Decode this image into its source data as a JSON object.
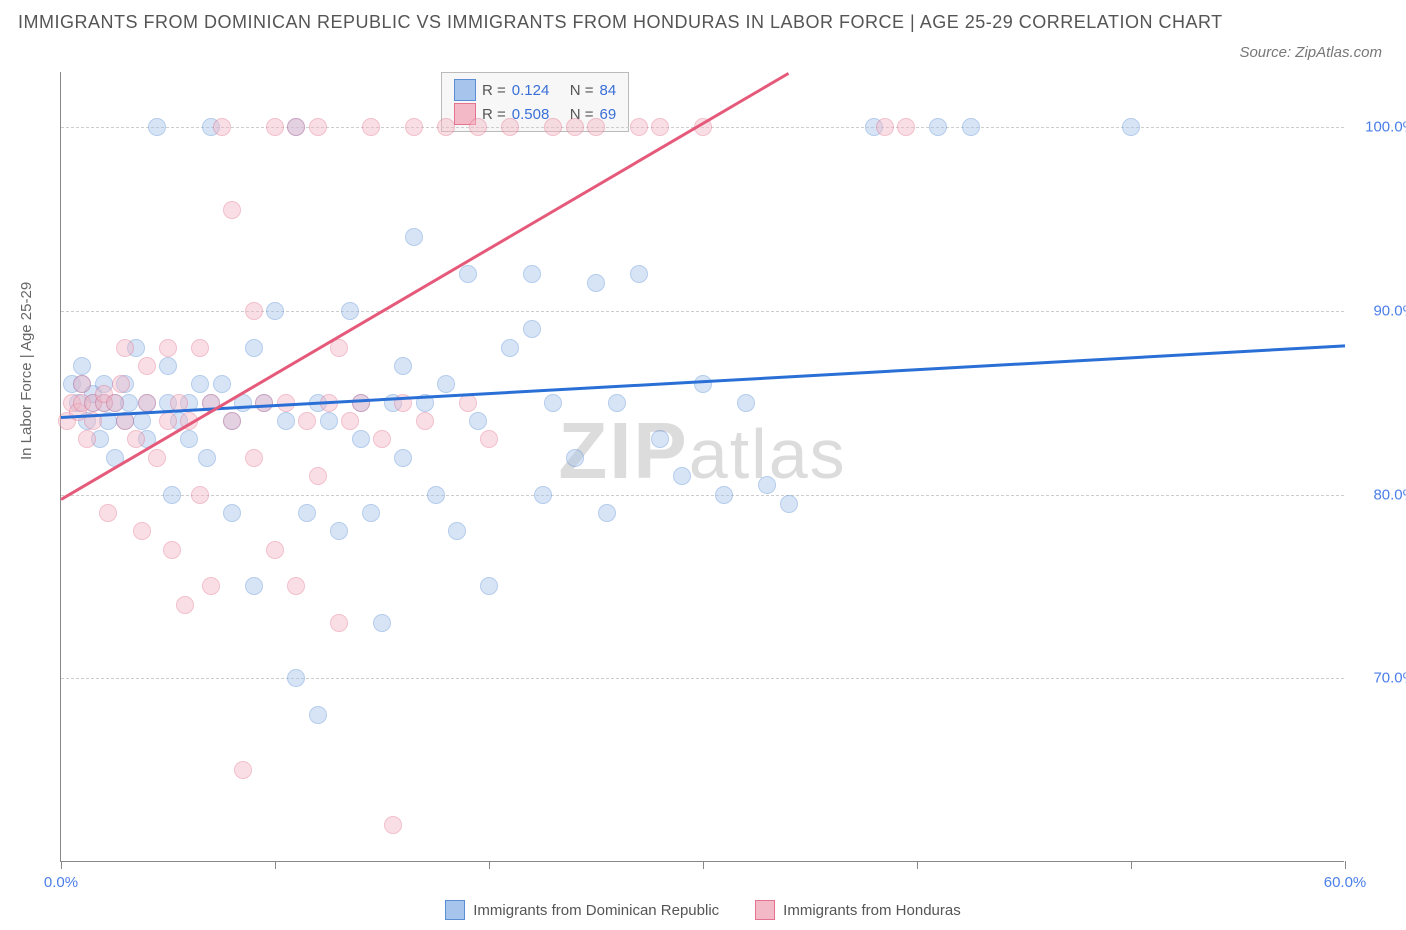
{
  "title": "IMMIGRANTS FROM DOMINICAN REPUBLIC VS IMMIGRANTS FROM HONDURAS IN LABOR FORCE | AGE 25-29 CORRELATION CHART",
  "source": "Source: ZipAtlas.com",
  "y_axis_label": "In Labor Force | Age 25-29",
  "watermark_a": "ZIP",
  "watermark_b": "atlas",
  "chart": {
    "type": "scatter",
    "background_color": "#ffffff",
    "grid_color": "#cccccc",
    "axis_color": "#888888",
    "tick_label_color": "#4a7ee8",
    "xlim": [
      0,
      60
    ],
    "ylim": [
      60,
      103
    ],
    "xticks": [
      0,
      10,
      20,
      30,
      40,
      50,
      60
    ],
    "xtick_labels": [
      "0.0%",
      "",
      "",
      "",
      "",
      "",
      "60.0%"
    ],
    "yticks": [
      70,
      80,
      90,
      100
    ],
    "ytick_labels": [
      "70.0%",
      "80.0%",
      "90.0%",
      "100.0%"
    ],
    "marker_radius": 9,
    "marker_opacity": 0.45,
    "series": [
      {
        "name": "Immigrants from Dominican Republic",
        "color_fill": "#a7c5ec",
        "color_stroke": "#5a8fd6",
        "R": 0.124,
        "N": 84,
        "trend": {
          "color": "#2a6fd6",
          "x1": 0,
          "y1": 84.3,
          "x2": 60,
          "y2": 88.2
        },
        "points": [
          [
            0.5,
            86
          ],
          [
            0.8,
            85
          ],
          [
            1.0,
            87
          ],
          [
            1.0,
            86
          ],
          [
            1.2,
            84
          ],
          [
            1.5,
            85
          ],
          [
            1.5,
            85.5
          ],
          [
            1.8,
            83
          ],
          [
            2.0,
            86
          ],
          [
            2.0,
            85
          ],
          [
            2.2,
            84
          ],
          [
            2.5,
            85
          ],
          [
            2.5,
            82
          ],
          [
            3.0,
            86
          ],
          [
            3.0,
            84
          ],
          [
            3.2,
            85
          ],
          [
            3.5,
            88
          ],
          [
            3.8,
            84
          ],
          [
            4.0,
            85
          ],
          [
            4.0,
            83
          ],
          [
            4.5,
            100
          ],
          [
            5.0,
            87
          ],
          [
            5.0,
            85
          ],
          [
            5.2,
            80
          ],
          [
            5.5,
            84
          ],
          [
            6.0,
            85
          ],
          [
            6.0,
            83
          ],
          [
            6.5,
            86
          ],
          [
            6.8,
            82
          ],
          [
            7.0,
            85
          ],
          [
            7.0,
            100
          ],
          [
            7.5,
            86
          ],
          [
            8.0,
            84
          ],
          [
            8.0,
            79
          ],
          [
            8.5,
            85
          ],
          [
            9.0,
            88
          ],
          [
            9.0,
            75
          ],
          [
            9.5,
            85
          ],
          [
            10.0,
            90
          ],
          [
            10.5,
            84
          ],
          [
            11.0,
            100
          ],
          [
            11.0,
            70
          ],
          [
            11.5,
            79
          ],
          [
            12.0,
            85
          ],
          [
            12.0,
            68
          ],
          [
            12.5,
            84
          ],
          [
            13.0,
            78
          ],
          [
            13.5,
            90
          ],
          [
            14.0,
            85
          ],
          [
            14.0,
            83
          ],
          [
            14.5,
            79
          ],
          [
            15.0,
            73
          ],
          [
            15.5,
            85
          ],
          [
            16.0,
            87
          ],
          [
            16.0,
            82
          ],
          [
            16.5,
            94
          ],
          [
            17.0,
            85
          ],
          [
            17.5,
            80
          ],
          [
            18.0,
            86
          ],
          [
            18.5,
            78
          ],
          [
            19.0,
            92
          ],
          [
            19.5,
            84
          ],
          [
            20.0,
            75
          ],
          [
            21.0,
            88
          ],
          [
            22.0,
            89
          ],
          [
            22.0,
            92
          ],
          [
            22.5,
            80
          ],
          [
            23.0,
            85
          ],
          [
            24.0,
            82
          ],
          [
            25.0,
            91.5
          ],
          [
            25.5,
            79
          ],
          [
            26.0,
            85
          ],
          [
            27.0,
            92
          ],
          [
            28.0,
            83
          ],
          [
            29.0,
            81
          ],
          [
            30.0,
            86
          ],
          [
            31.0,
            80
          ],
          [
            32.0,
            85
          ],
          [
            33.0,
            80.5
          ],
          [
            34.0,
            79.5
          ],
          [
            38.0,
            100
          ],
          [
            41.0,
            100
          ],
          [
            42.5,
            100
          ],
          [
            50.0,
            100
          ]
        ]
      },
      {
        "name": "Immigrants from Honduras",
        "color_fill": "#f3b9c6",
        "color_stroke": "#e3738f",
        "R": 0.508,
        "N": 69,
        "trend": {
          "color": "#e55a7a",
          "x1": 0,
          "y1": 79.8,
          "x2": 34,
          "y2": 103
        },
        "points": [
          [
            0.3,
            84
          ],
          [
            0.5,
            85
          ],
          [
            0.8,
            84.5
          ],
          [
            1.0,
            85
          ],
          [
            1.0,
            86
          ],
          [
            1.2,
            83
          ],
          [
            1.5,
            85
          ],
          [
            1.5,
            84
          ],
          [
            2.0,
            85
          ],
          [
            2.0,
            85.5
          ],
          [
            2.2,
            79
          ],
          [
            2.5,
            85
          ],
          [
            2.8,
            86
          ],
          [
            3.0,
            84
          ],
          [
            3.0,
            88
          ],
          [
            3.5,
            83
          ],
          [
            3.8,
            78
          ],
          [
            4.0,
            85
          ],
          [
            4.0,
            87
          ],
          [
            4.5,
            82
          ],
          [
            5.0,
            84
          ],
          [
            5.0,
            88
          ],
          [
            5.2,
            77
          ],
          [
            5.5,
            85
          ],
          [
            5.8,
            74
          ],
          [
            6.0,
            84
          ],
          [
            6.5,
            88
          ],
          [
            6.5,
            80
          ],
          [
            7.0,
            85
          ],
          [
            7.0,
            75
          ],
          [
            7.5,
            100
          ],
          [
            8.0,
            95.5
          ],
          [
            8.0,
            84
          ],
          [
            8.5,
            65
          ],
          [
            9.0,
            90
          ],
          [
            9.0,
            82
          ],
          [
            9.5,
            85
          ],
          [
            10.0,
            100
          ],
          [
            10.0,
            77
          ],
          [
            10.5,
            85
          ],
          [
            11.0,
            75
          ],
          [
            11.0,
            100
          ],
          [
            11.5,
            84
          ],
          [
            12.0,
            100
          ],
          [
            12.0,
            81
          ],
          [
            12.5,
            85
          ],
          [
            13.0,
            88
          ],
          [
            13.0,
            73
          ],
          [
            13.5,
            84
          ],
          [
            14.0,
            85
          ],
          [
            14.5,
            100
          ],
          [
            15.0,
            83
          ],
          [
            15.5,
            62
          ],
          [
            16.0,
            85
          ],
          [
            16.5,
            100
          ],
          [
            17.0,
            84
          ],
          [
            18.0,
            100
          ],
          [
            19.0,
            85
          ],
          [
            19.5,
            100
          ],
          [
            20.0,
            83
          ],
          [
            21.0,
            100
          ],
          [
            23.0,
            100
          ],
          [
            25.0,
            100
          ],
          [
            27.0,
            100
          ],
          [
            28.0,
            100
          ],
          [
            30.0,
            100
          ],
          [
            38.5,
            100
          ],
          [
            39.5,
            100
          ],
          [
            24.0,
            100
          ]
        ]
      }
    ]
  },
  "legend_box": {
    "r_label": "R =",
    "n_label": "N ="
  }
}
